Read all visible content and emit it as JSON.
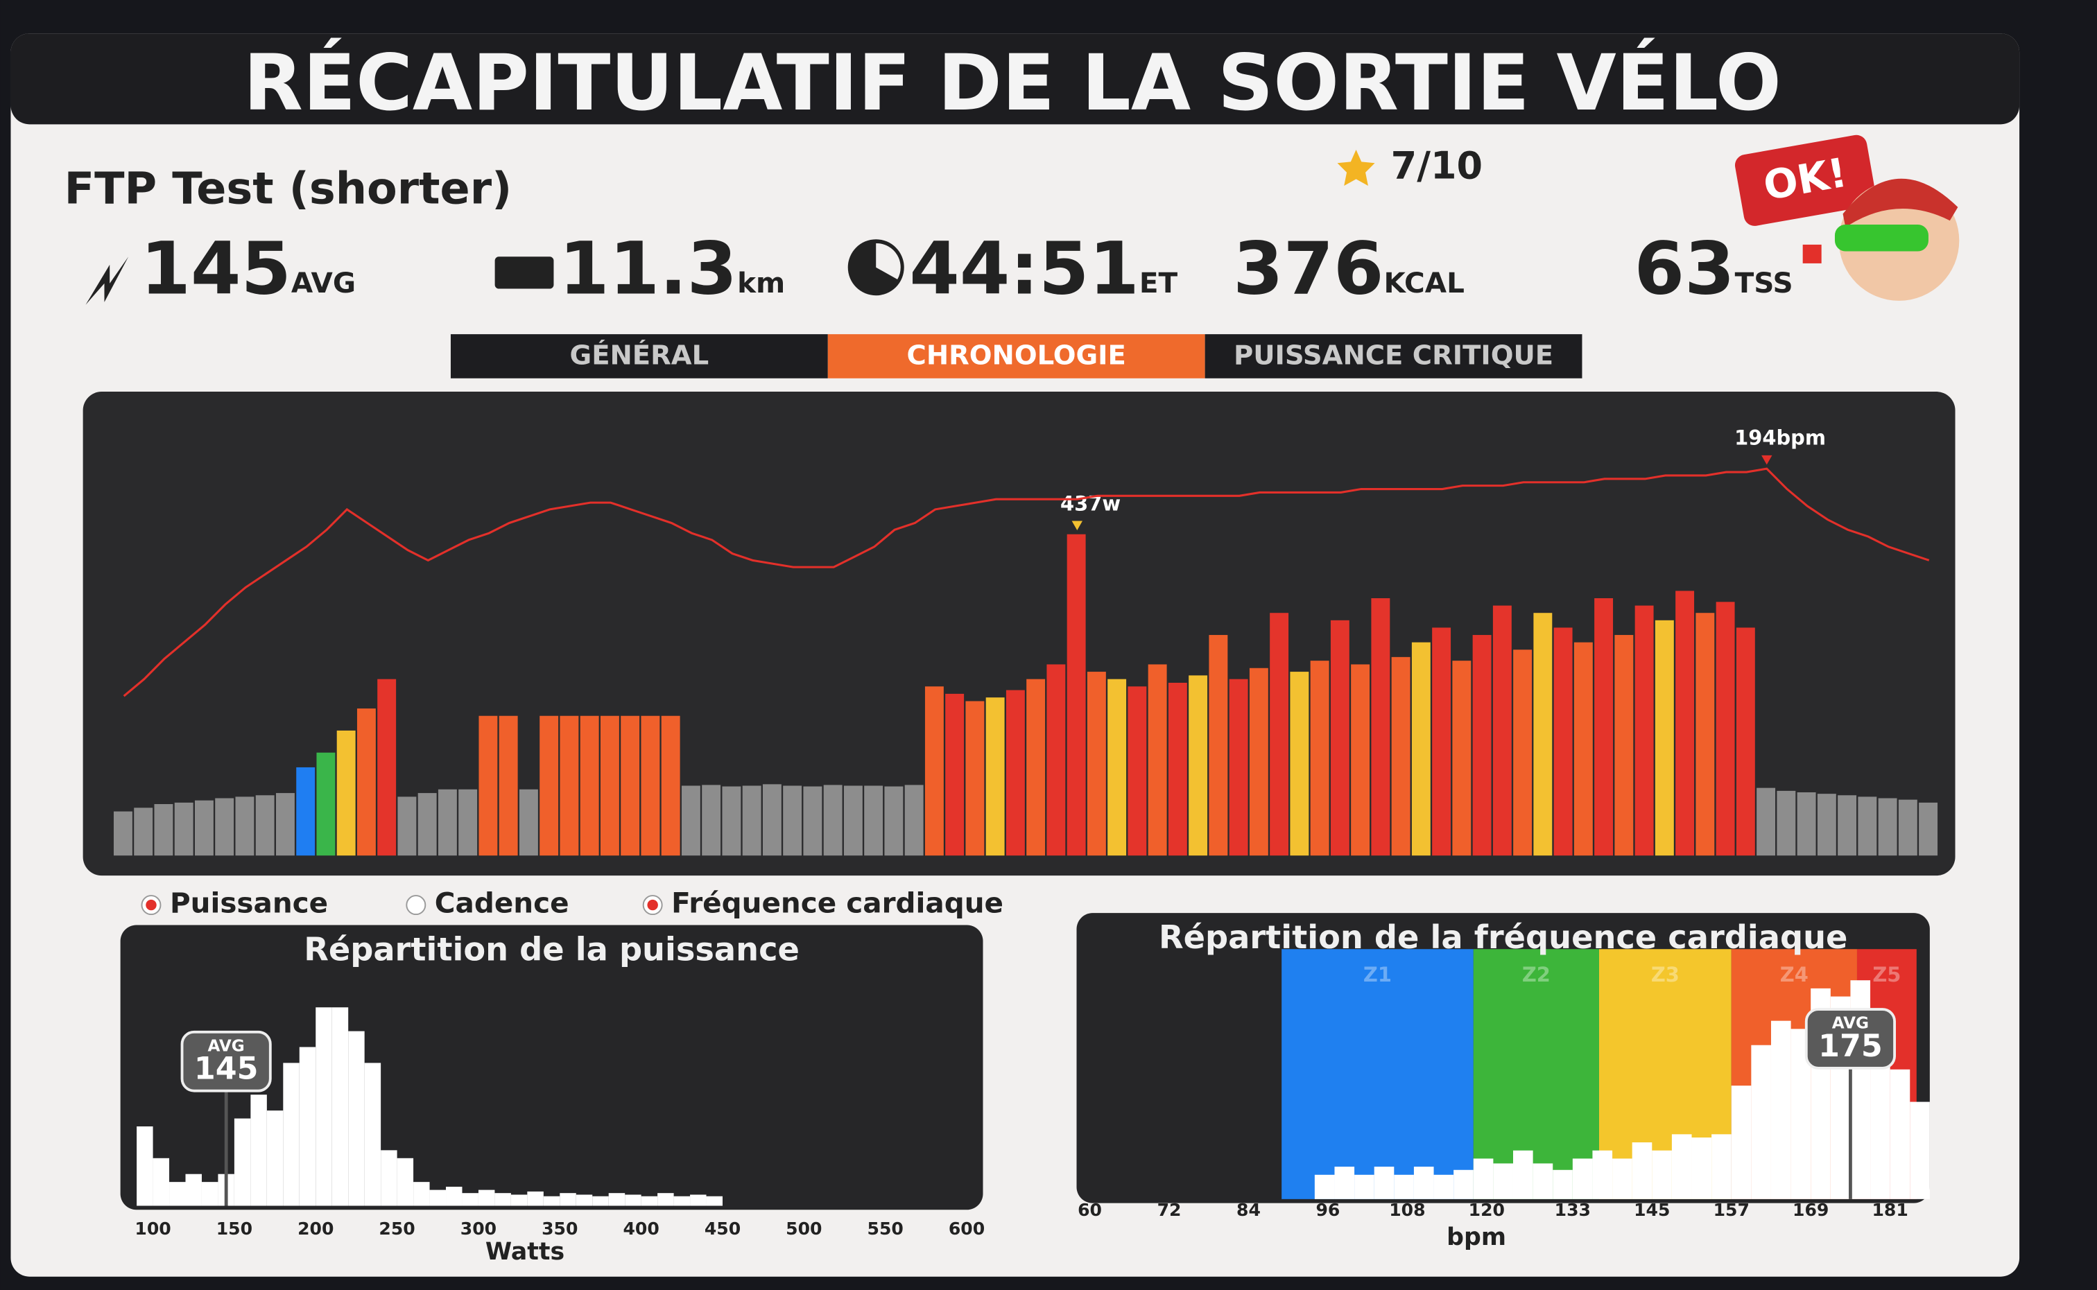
{
  "header": {
    "title": "RÉCAPITULATIF DE LA SORTIE VÉLO"
  },
  "workout": {
    "name": "FTP Test (shorter)",
    "rating": "7/10",
    "badge": "OK!"
  },
  "stats": [
    {
      "value": 145,
      "unit": "AVG"
    },
    {
      "value": 11.3,
      "unit": "km"
    },
    {
      "value": "44:51",
      "unit": "ET"
    },
    {
      "value": 376,
      "unit": "KCAL"
    },
    {
      "value": 63,
      "unit": "TSS"
    }
  ],
  "tabs": [
    {
      "label": "GÉNÉRAL",
      "active": false
    },
    {
      "label": "CHRONOLOGIE",
      "active": true
    },
    {
      "label": "PUISSANCE CRITIQUE",
      "active": false
    }
  ],
  "chart_data": [
    {
      "type": "bar",
      "ylim": [
        0,
        600
      ],
      "y2lim": [
        80,
        210
      ],
      "series": [
        {
          "name": "Puissance",
          "visible": true,
          "annotation": "437w",
          "marker_color": "#f3c131",
          "values": [
            60,
            65,
            70,
            72,
            75,
            78,
            80,
            82,
            85,
            120,
            140,
            170,
            200,
            240,
            80,
            85,
            90,
            90,
            190,
            190,
            90,
            190,
            190,
            190,
            190,
            190,
            190,
            190,
            95,
            96,
            94,
            95,
            97,
            95,
            94,
            96,
            95,
            95,
            94,
            96,
            230,
            220,
            210,
            215,
            225,
            240,
            260,
            437,
            250,
            240,
            230,
            260,
            235,
            245,
            300,
            240,
            255,
            330,
            250,
            265,
            320,
            260,
            350,
            270,
            290,
            310,
            265,
            300,
            340,
            280,
            330,
            310,
            290,
            350,
            300,
            340,
            320,
            360,
            330,
            345,
            310,
            92,
            88,
            86,
            84,
            82,
            80,
            78,
            76,
            72
          ],
          "colors": [
            "#8d8d8d",
            "#8d8d8d",
            "#8d8d8d",
            "#8d8d8d",
            "#8d8d8d",
            "#8d8d8d",
            "#8d8d8d",
            "#8d8d8d",
            "#8d8d8d",
            "#1f7ef2",
            "#3ab54a",
            "#f3c131",
            "#f0602b",
            "#e4342b",
            "#8d8d8d",
            "#8d8d8d",
            "#8d8d8d",
            "#8d8d8d",
            "#f0602b",
            "#f0602b",
            "#8d8d8d",
            "#f0602b",
            "#f0602b",
            "#f0602b",
            "#f0602b",
            "#f0602b",
            "#f0602b",
            "#f0602b",
            "#8d8d8d",
            "#8d8d8d",
            "#8d8d8d",
            "#8d8d8d",
            "#8d8d8d",
            "#8d8d8d",
            "#8d8d8d",
            "#8d8d8d",
            "#8d8d8d",
            "#8d8d8d",
            "#8d8d8d",
            "#8d8d8d",
            "#f0602b",
            "#e4342b",
            "#f0602b",
            "#f3c131",
            "#e4342b",
            "#f0602b",
            "#e4342b",
            "#e4342b",
            "#f0602b",
            "#f3c131",
            "#e4342b",
            "#f0602b",
            "#e4342b",
            "#f3c131",
            "#f0602b",
            "#e4342b",
            "#f0602b",
            "#e4342b",
            "#f3c131",
            "#f0602b",
            "#e4342b",
            "#f0602b",
            "#e4342b",
            "#f0602b",
            "#f3c131",
            "#e4342b",
            "#f0602b",
            "#e4342b",
            "#e4342b",
            "#f0602b",
            "#f3c131",
            "#e4342b",
            "#f0602b",
            "#e4342b",
            "#f0602b",
            "#e4342b",
            "#f3c131",
            "#e4342b",
            "#f0602b",
            "#e4342b",
            "#e4342b",
            "#8d8d8d",
            "#8d8d8d",
            "#8d8d8d",
            "#8d8d8d",
            "#8d8d8d",
            "#8d8d8d",
            "#8d8d8d",
            "#8d8d8d",
            "#8d8d8d"
          ]
        },
        {
          "name": "Cadence",
          "visible": false
        },
        {
          "name": "Fréquence cardiaque",
          "visible": true,
          "axis": "y2",
          "color": "#e3302a",
          "annotation": "194bpm",
          "marker_color": "#e3302a",
          "values": [
            127,
            132,
            138,
            143,
            148,
            154,
            159,
            163,
            167,
            171,
            176,
            182,
            178,
            174,
            170,
            167,
            170,
            173,
            175,
            178,
            180,
            182,
            183,
            184,
            184,
            182,
            180,
            178,
            175,
            173,
            169,
            167,
            166,
            165,
            165,
            165,
            168,
            171,
            176,
            178,
            182,
            183,
            184,
            185,
            185,
            185,
            185,
            185,
            186,
            186,
            186,
            186,
            186,
            186,
            186,
            186,
            187,
            187,
            187,
            187,
            187,
            188,
            188,
            188,
            188,
            188,
            189,
            189,
            189,
            190,
            190,
            190,
            190,
            191,
            191,
            191,
            192,
            192,
            192,
            193,
            193,
            194,
            188,
            183,
            179,
            176,
            174,
            171,
            169,
            167
          ]
        }
      ]
    },
    {
      "type": "histogram",
      "title": "Répartition de la puissance",
      "xlabel": "Watts",
      "color": "#ffffff",
      "bins": [
        90,
        100,
        110,
        120,
        130,
        140,
        150,
        160,
        170,
        180,
        190,
        200,
        210,
        220,
        230,
        240,
        250,
        260,
        270,
        280,
        290,
        300,
        310,
        320,
        330,
        340,
        350,
        360,
        370,
        380,
        390,
        400,
        410,
        420,
        430,
        440,
        450
      ],
      "values": [
        50,
        30,
        15,
        20,
        15,
        20,
        55,
        70,
        60,
        90,
        100,
        125,
        125,
        110,
        90,
        35,
        30,
        15,
        10,
        12,
        8,
        10,
        8,
        7,
        9,
        6,
        8,
        7,
        6,
        8,
        7,
        6,
        8,
        6,
        7,
        6
      ],
      "xlim": [
        80,
        610
      ],
      "ylim": [
        0,
        160
      ],
      "xticks": [
        100,
        150,
        200,
        250,
        300,
        350,
        400,
        450,
        500,
        550,
        600
      ],
      "avg": {
        "label": "AVG",
        "value": 145
      }
    },
    {
      "type": "histogram",
      "title": "Répartition de la fréquence cardiaque",
      "xlabel": "bpm",
      "color": "#ffffff",
      "bins": [
        94,
        97,
        100,
        103,
        106,
        109,
        112,
        115,
        118,
        121,
        124,
        127,
        130,
        133,
        136,
        139,
        142,
        145,
        148,
        151,
        154,
        157,
        160,
        163,
        166,
        169,
        172,
        175,
        178,
        181,
        184,
        187
      ],
      "values": [
        15,
        20,
        15,
        20,
        15,
        20,
        15,
        18,
        25,
        22,
        30,
        22,
        18,
        25,
        30,
        25,
        35,
        30,
        40,
        38,
        40,
        70,
        95,
        110,
        105,
        130,
        125,
        135,
        110,
        80,
        60
      ],
      "xlim": [
        58,
        187
      ],
      "ylim": [
        0,
        160
      ],
      "xticks": [
        60,
        72,
        84,
        96,
        108,
        120,
        133,
        145,
        157,
        169,
        181
      ],
      "zones": [
        {
          "name": "Z1",
          "from": 89,
          "to": 118,
          "color": "#1f80f0"
        },
        {
          "name": "Z2",
          "from": 118,
          "to": 137,
          "color": "#3db53a"
        },
        {
          "name": "Z3",
          "from": 137,
          "to": 157,
          "color": "#f4c62c"
        },
        {
          "name": "Z4",
          "from": 157,
          "to": 176,
          "color": "#f0602b"
        },
        {
          "name": "Z5",
          "from": 176,
          "to": 185,
          "color": "#e3302a"
        }
      ],
      "avg": {
        "label": "AVG",
        "value": 175
      }
    }
  ]
}
